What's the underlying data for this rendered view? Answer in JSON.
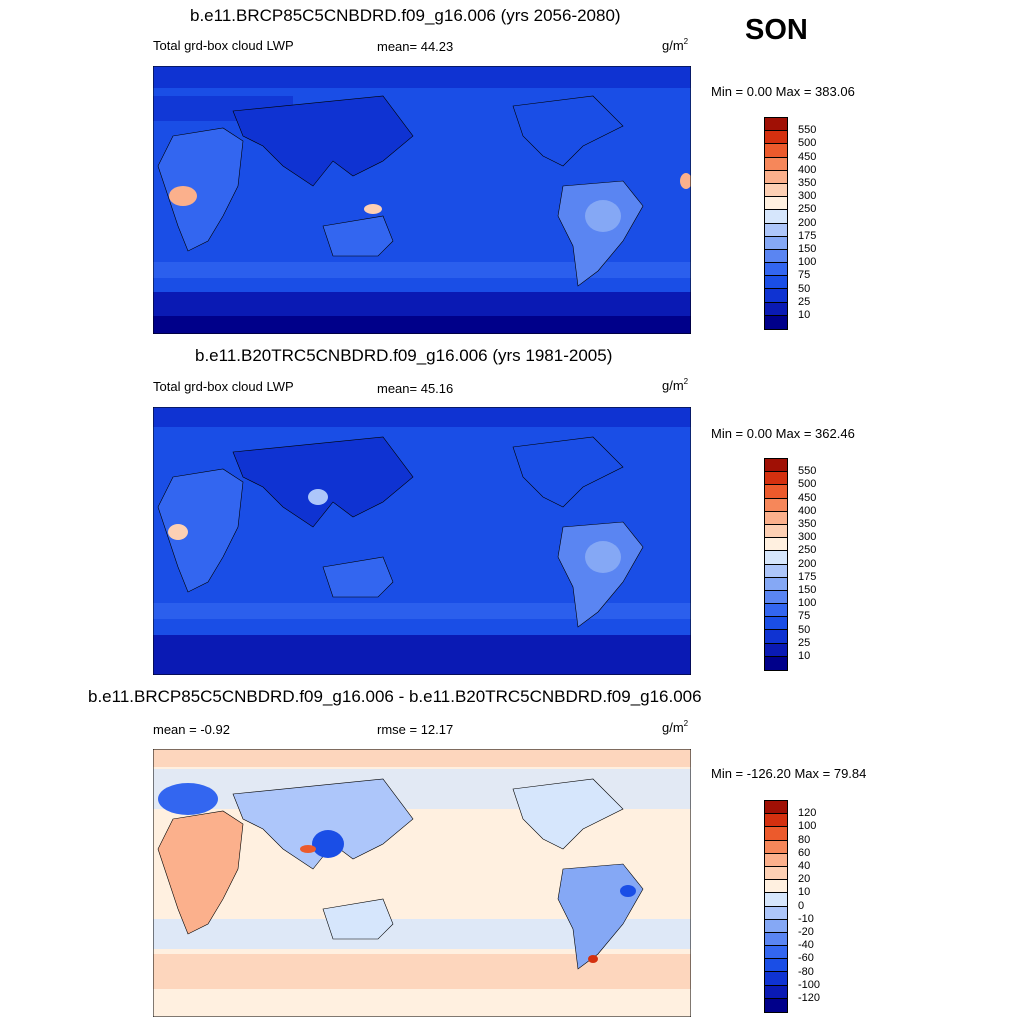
{
  "season": "SON",
  "panels": [
    {
      "title": "b.e11.BRCP85C5CNBDRD.f09_g16.006 (yrs 2056-2080)",
      "left_label": "Total grd-box cloud LWP",
      "mid_label": "mean=  44.23",
      "unit_base": "g/m",
      "unit_exp": "2",
      "minmax": "Min =   0.00 Max = 383.06",
      "kind": "lwp"
    },
    {
      "title": "b.e11.B20TRC5CNBDRD.f09_g16.006 (yrs 1981-2005)",
      "left_label": "Total grd-box cloud LWP",
      "mid_label": "mean=  45.16",
      "unit_base": "g/m",
      "unit_exp": "2",
      "minmax": "Min =   0.00 Max = 362.46",
      "kind": "lwp"
    },
    {
      "title": "b.e11.BRCP85C5CNBDRD.f09_g16.006 - b.e11.B20TRC5CNBDRD.f09_g16.006",
      "left_label": "mean =  -0.92",
      "mid_label": "rmse =  12.17",
      "unit_base": "g/m",
      "unit_exp": "2",
      "minmax": "Min = -126.20 Max =  79.84",
      "kind": "diff"
    }
  ],
  "chart_data": [
    {
      "type": "heatmap",
      "title": "b.e11.BRCP85C5CNBDRD.f09_g16.006 (yrs 2056-2080)",
      "variable": "Total grd-box cloud LWP",
      "units": "g/m2",
      "mean": 44.23,
      "min": 0.0,
      "max": 383.06,
      "contour_levels": [
        10,
        25,
        50,
        75,
        100,
        150,
        175,
        200,
        250,
        300,
        350,
        400,
        450,
        500,
        550
      ],
      "colors": [
        "#00008a",
        "#0a1ab4",
        "#0f33d2",
        "#1a4ee6",
        "#3366f0",
        "#5a85f2",
        "#85a8f5",
        "#adc6fa",
        "#d6e6fc",
        "#fff0e0",
        "#fdd0b4",
        "#fbb08c",
        "#f6875a",
        "#ec5a2c",
        "#d4300f",
        "#a01005"
      ]
    },
    {
      "type": "heatmap",
      "title": "b.e11.B20TRC5CNBDRD.f09_g16.006 (yrs 1981-2005)",
      "variable": "Total grd-box cloud LWP",
      "units": "g/m2",
      "mean": 45.16,
      "min": 0.0,
      "max": 362.46,
      "contour_levels": [
        10,
        25,
        50,
        75,
        100,
        150,
        175,
        200,
        250,
        300,
        350,
        400,
        450,
        500,
        550
      ],
      "colors": [
        "#00008a",
        "#0a1ab4",
        "#0f33d2",
        "#1a4ee6",
        "#3366f0",
        "#5a85f2",
        "#85a8f5",
        "#adc6fa",
        "#d6e6fc",
        "#fff0e0",
        "#fdd0b4",
        "#fbb08c",
        "#f6875a",
        "#ec5a2c",
        "#d4300f",
        "#a01005"
      ]
    },
    {
      "type": "heatmap",
      "title": "b.e11.BRCP85C5CNBDRD.f09_g16.006 - b.e11.B20TRC5CNBDRD.f09_g16.006",
      "units": "g/m2",
      "mean": -0.92,
      "rmse": 12.17,
      "min": -126.2,
      "max": 79.84,
      "contour_levels": [
        -120,
        -100,
        -80,
        -60,
        -40,
        -20,
        -10,
        0,
        10,
        20,
        40,
        60,
        80,
        100,
        120
      ],
      "colors": [
        "#00008a",
        "#0a1ab4",
        "#0f33d2",
        "#1a4ee6",
        "#3366f0",
        "#5a85f2",
        "#85a8f5",
        "#adc6fa",
        "#d6e6fc",
        "#fff0e0",
        "#fdd0b4",
        "#fbb08c",
        "#f6875a",
        "#ec5a2c",
        "#d4300f",
        "#a01005"
      ]
    }
  ]
}
